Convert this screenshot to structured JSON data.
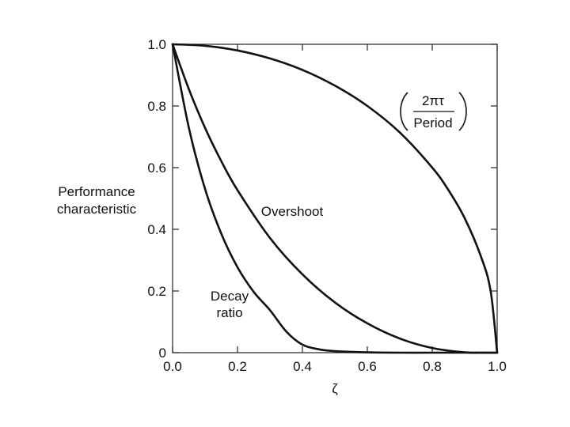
{
  "chart_data": {
    "type": "line",
    "xlabel": "ζ",
    "ylabel_lines": [
      "Performance",
      "characteristic"
    ],
    "xlim": [
      0,
      1
    ],
    "ylim": [
      0,
      1
    ],
    "x_ticks": [
      0,
      0.2,
      0.4,
      0.6,
      0.8,
      1.0
    ],
    "x_tick_labels": [
      "0.0",
      "0.2",
      "0.4",
      "0.6",
      "0.8",
      "1.0"
    ],
    "y_ticks": [
      0,
      0.2,
      0.4,
      0.6,
      0.8,
      1.0
    ],
    "y_tick_labels": [
      "0",
      "0.2",
      "0.4",
      "0.6",
      "0.8",
      "1.0"
    ],
    "grid": false,
    "series": [
      {
        "label_lines": [
          "(2πτ/Period)"
        ],
        "x": [
          0,
          0.1,
          0.2,
          0.3,
          0.4,
          0.5,
          0.6,
          0.7,
          0.8,
          0.85,
          0.9,
          0.95,
          0.98,
          1.0
        ],
        "y": [
          1.0,
          0.995,
          0.98,
          0.954,
          0.917,
          0.866,
          0.8,
          0.714,
          0.6,
          0.527,
          0.436,
          0.312,
          0.199,
          0.0
        ]
      },
      {
        "label_lines": [
          "Overshoot"
        ],
        "x": [
          0,
          0.05,
          0.1,
          0.15,
          0.2,
          0.3,
          0.4,
          0.5,
          0.6,
          0.7,
          0.8,
          0.9,
          0.95,
          1.0
        ],
        "y": [
          1.0,
          0.855,
          0.729,
          0.621,
          0.527,
          0.372,
          0.254,
          0.163,
          0.095,
          0.046,
          0.015,
          0.001,
          0.0,
          0.0
        ]
      },
      {
        "label_lines": [
          "Decay",
          "ratio"
        ],
        "x": [
          0,
          0.05,
          0.1,
          0.15,
          0.2,
          0.25,
          0.3,
          0.35,
          0.4,
          0.45,
          0.5,
          0.6,
          0.7,
          0.8,
          0.9,
          1.0
        ],
        "y": [
          1.0,
          0.73,
          0.531,
          0.386,
          0.277,
          0.197,
          0.138,
          0.069,
          0.026,
          0.011,
          0.005,
          0.001,
          0.0,
          0.0,
          0.0,
          0.0
        ]
      }
    ],
    "fraction": {
      "numerator": "2πτ",
      "denominator": "Period"
    }
  }
}
